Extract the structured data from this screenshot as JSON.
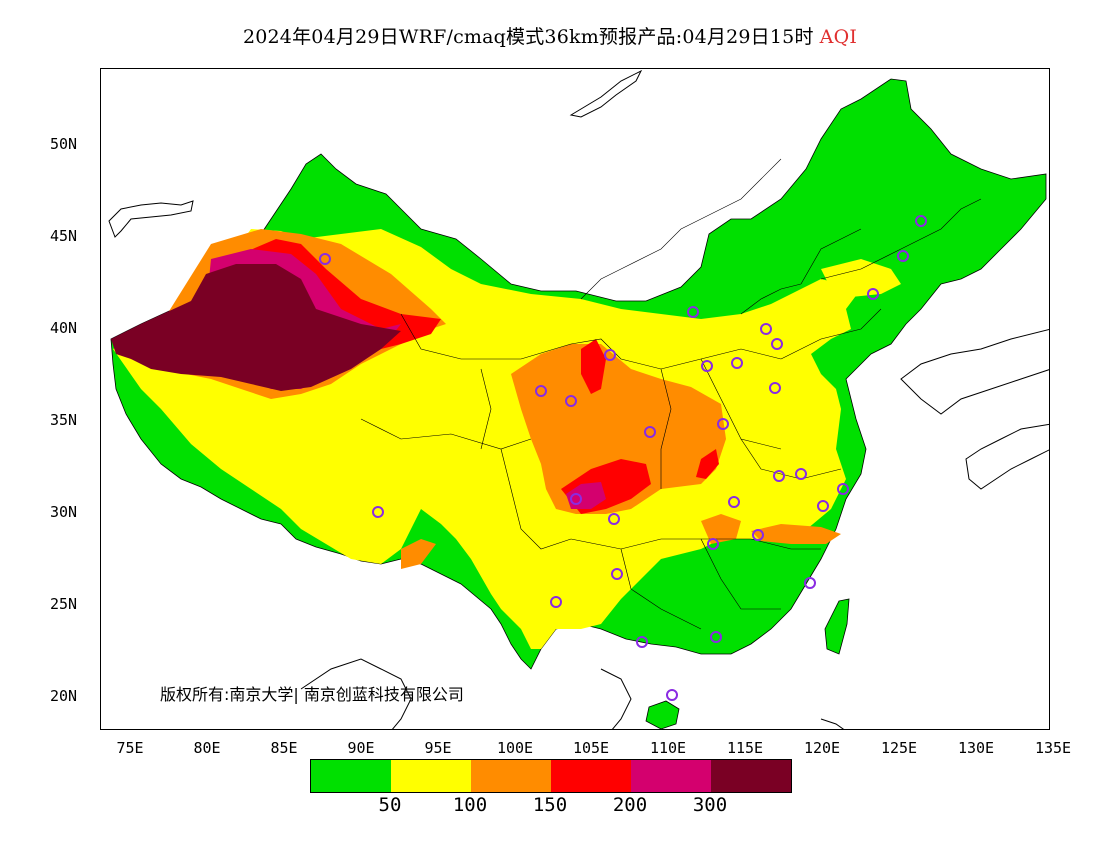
{
  "header": {
    "title_main": "2024年04月29日WRF/cmaq模式36km预报产品:04月29日15时",
    "title_aqi": "AQI"
  },
  "axes": {
    "y_ticks": [
      "50N",
      "45N",
      "40N",
      "35N",
      "30N",
      "25N",
      "20N"
    ],
    "x_ticks": [
      "75E",
      "80E",
      "85E",
      "90E",
      "95E",
      "100E",
      "105E",
      "110E",
      "115E",
      "120E",
      "125E",
      "130E",
      "135E"
    ]
  },
  "copyright": "版权所有:南京大学| 南京创蓝科技有限公司",
  "legend": {
    "colors": [
      "#00e000",
      "#ffff00",
      "#ff8c00",
      "#ff0000",
      "#d4006e",
      "#7a0024"
    ],
    "labels": [
      "50",
      "100",
      "150",
      "200",
      "300"
    ]
  },
  "colors": {
    "good": "#00e000",
    "moderate": "#ffff00",
    "sensitive": "#ff8c00",
    "unhealthy": "#ff0000",
    "very_unhealthy": "#d4006e",
    "hazardous": "#7a0024",
    "station_marker": "#8a2be2"
  }
}
